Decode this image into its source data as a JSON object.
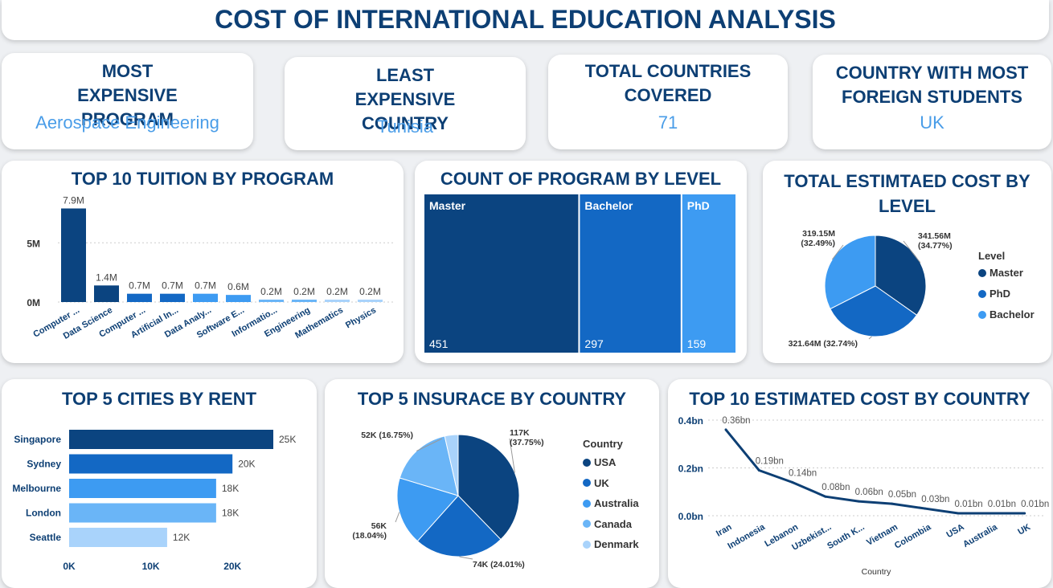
{
  "dashboard_title": "COST OF INTERNATIONAL EDUCATION ANALYSIS",
  "kpis": [
    {
      "heading": "MOST EXPENSIVE PROGRAM",
      "value": "Aerospace Engineering"
    },
    {
      "heading": "LEAST EXPENSIVE COUNTRY",
      "value": "Tunisia"
    },
    {
      "heading": "TOTAL COUNTRIES COVERED",
      "value": "71"
    },
    {
      "heading": "COUNTRY WITH MOST FOREIGN STUDENTS",
      "value": "UK"
    }
  ],
  "colors": {
    "dark": "#0b4480",
    "mid": "#1368c4",
    "light": "#3d9bf2",
    "lighter": "#6ab5f7",
    "lightest": "#a9d3fb"
  },
  "chart_data": [
    {
      "id": "tuition",
      "type": "bar",
      "title": "TOP 10 TUITION BY PROGRAM",
      "categories": [
        "Computer ...",
        "Data Science",
        "Computer ...",
        "Artificial In...",
        "Data Analy...",
        "Software E...",
        "Informatio...",
        "Engineering",
        "Mathematics",
        "Physics"
      ],
      "values": [
        7900000,
        1400000,
        700000,
        700000,
        700000,
        600000,
        200000,
        200000,
        200000,
        200000
      ],
      "data_labels": [
        "7.9M",
        "1.4M",
        "0.7M",
        "0.7M",
        "0.7M",
        "0.6M",
        "0.2M",
        "0.2M",
        "0.2M",
        "0.2M"
      ],
      "yticks": [
        {
          "value": 0,
          "label": "0M"
        },
        {
          "value": 5000000,
          "label": "5M"
        }
      ],
      "ylim": [
        0,
        8000000
      ]
    },
    {
      "id": "program_level",
      "type": "treemap",
      "title": "COUNT OF PROGRAM BY LEVEL",
      "categories": [
        "Master",
        "Bachelor",
        "PhD"
      ],
      "values": [
        451,
        297,
        159
      ]
    },
    {
      "id": "cost_level",
      "type": "pie",
      "title": "TOTAL ESTIMTAED COST BY LEVEL",
      "legend_title": "Level",
      "categories": [
        "Master",
        "PhD",
        "Bachelor"
      ],
      "values": [
        341.56,
        321.64,
        319.15
      ],
      "data_labels": [
        "341.56M (34.77%)",
        "321.64M (32.74%)",
        "319.15M (32.49%)"
      ]
    },
    {
      "id": "rent",
      "type": "bar",
      "orientation": "horizontal",
      "title": "TOP 5 CITIES BY RENT",
      "categories": [
        "Singapore",
        "Sydney",
        "Melbourne",
        "London",
        "Seattle"
      ],
      "values": [
        25000,
        20000,
        18000,
        18000,
        12000
      ],
      "data_labels": [
        "25K",
        "20K",
        "18K",
        "18K",
        "12K"
      ],
      "xticks": [
        {
          "value": 0,
          "label": "0K"
        },
        {
          "value": 10000,
          "label": "10K"
        },
        {
          "value": 20000,
          "label": "20K"
        }
      ],
      "xlim": [
        0,
        25000
      ]
    },
    {
      "id": "insurance",
      "type": "pie",
      "title": "TOP 5 INSURACE BY COUNTRY",
      "legend_title": "Country",
      "categories": [
        "USA",
        "UK",
        "Australia",
        "Canada",
        "Denmark"
      ],
      "values": [
        117,
        74,
        56,
        52,
        11
      ],
      "data_labels": [
        "117K (37.75%)",
        "74K (24.01%)",
        "56K (18.04%)",
        "52K (16.75%)",
        ""
      ]
    },
    {
      "id": "country_cost",
      "type": "line",
      "title": "TOP 10 ESTIMATED COST BY COUNTRY",
      "xlabel": "Country",
      "categories": [
        "Iran",
        "Indonesia",
        "Lebanon",
        "Uzbekist...",
        "South K...",
        "Vietnam",
        "Colombia",
        "USA",
        "Australia",
        "UK"
      ],
      "values": [
        0.36,
        0.19,
        0.14,
        0.08,
        0.06,
        0.05,
        0.03,
        0.01,
        0.01,
        0.01
      ],
      "data_labels": [
        "0.36bn",
        "0.19bn",
        "0.14bn",
        "0.08bn",
        "0.06bn",
        "0.05bn",
        "0.03bn",
        "0.01bn",
        "0.01bn",
        "0.01bn"
      ],
      "yticks": [
        {
          "value": 0,
          "label": "0.0bn"
        },
        {
          "value": 0.2,
          "label": "0.2bn"
        },
        {
          "value": 0.4,
          "label": "0.4bn"
        }
      ],
      "ylim": [
        0,
        0.4
      ]
    }
  ]
}
